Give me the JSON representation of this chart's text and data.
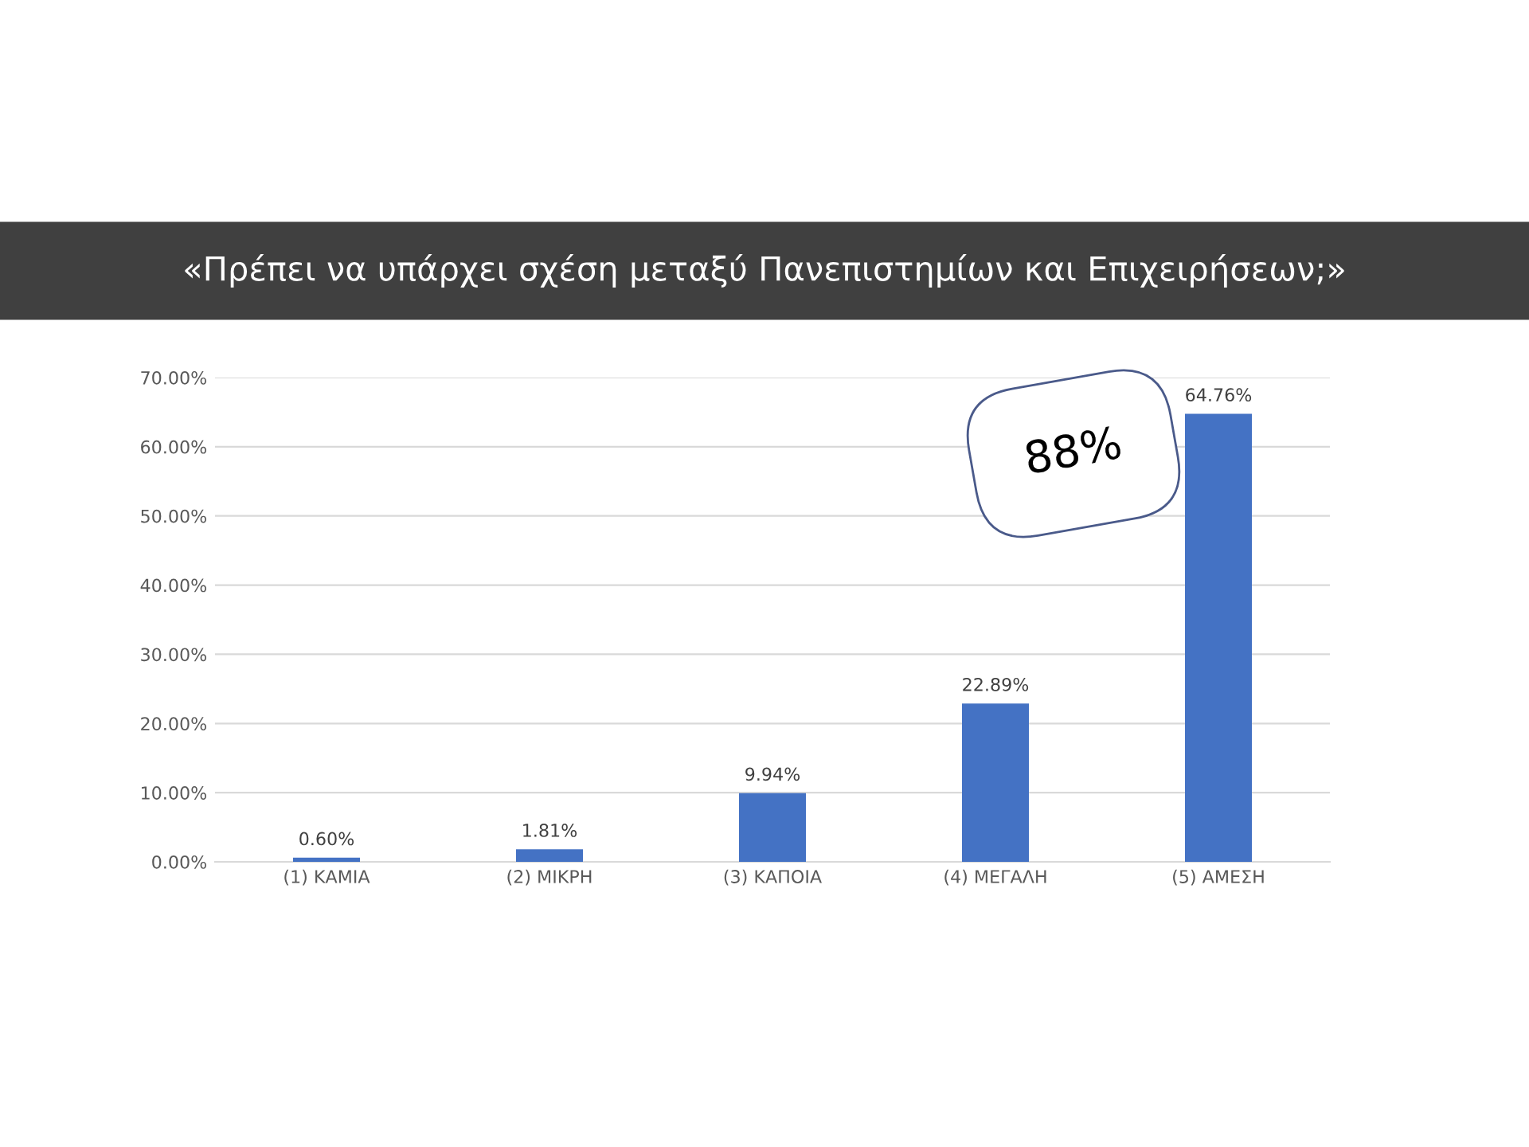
{
  "chart_data": {
    "type": "bar",
    "title": "«Πρέπει να υπάρχει σχέση μεταξύ Πανεπιστημίων και Επιχειρήσεων;»",
    "categories": [
      "(1) ΚΑΜΙΑ",
      "(2) ΜΙΚΡΗ",
      "(3) ΚΑΠΟΙΑ",
      "(4) ΜΕΓΑΛΗ",
      "(5) ΑΜΕΣΗ"
    ],
    "values": [
      0.6,
      1.81,
      9.94,
      22.89,
      64.76
    ],
    "value_labels": [
      "0.60%",
      "1.81%",
      "9.94%",
      "22.89%",
      "64.76%"
    ],
    "color": "#4472c4",
    "ylim": [
      0,
      70
    ],
    "yticks": [
      {
        "value": 0,
        "label": "0.00%"
      },
      {
        "value": 10,
        "label": "10.00%"
      },
      {
        "value": 20,
        "label": "20.00%"
      },
      {
        "value": 30,
        "label": "30.00%"
      },
      {
        "value": 40,
        "label": "40.00%"
      },
      {
        "value": 50,
        "label": "50.00%"
      },
      {
        "value": 60,
        "label": "60.00%"
      },
      {
        "value": 70,
        "label": "70.00%"
      }
    ],
    "grid": "y",
    "annotations": [
      "88%"
    ]
  }
}
